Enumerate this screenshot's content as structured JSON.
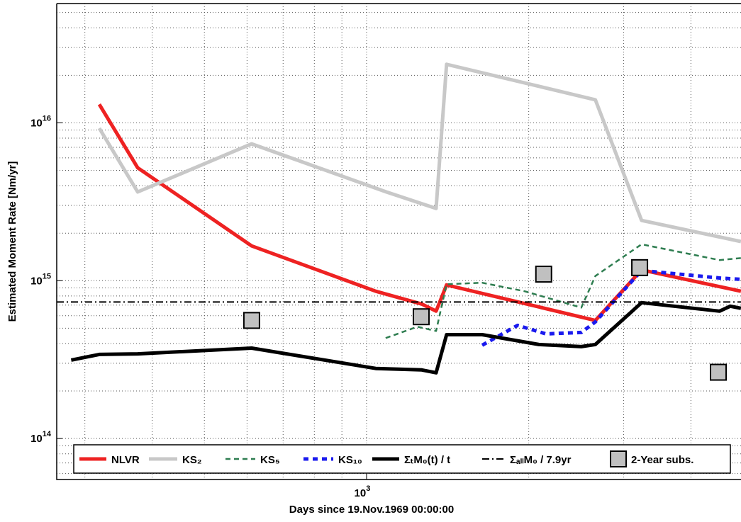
{
  "chart_data": {
    "type": "line",
    "xlabel": "Days since 19.Nov.1969 00:00:00",
    "ylabel": "Estimated Moment Rate [Nm/yr]",
    "xscale": "log",
    "yscale": "log",
    "grid": true,
    "xlim": [
      266,
      4955
    ],
    "ylim": [
      55000000000000.0,
      5.7e+16
    ],
    "xticks": [
      {
        "value": 1000,
        "label": "10",
        "exponent": "3"
      }
    ],
    "yticks": [
      {
        "value": 100000000000000.0,
        "label": "10",
        "exponent": "14"
      },
      {
        "value": 1000000000000000.0,
        "label": "10",
        "exponent": "15"
      },
      {
        "value": 1e+16,
        "label": "10",
        "exponent": "16"
      }
    ],
    "xminor": [
      300,
      400,
      500,
      600,
      700,
      800,
      900,
      2000,
      3000,
      4000
    ],
    "yminor": [
      60000000000000.0,
      70000000000000.0,
      80000000000000.0,
      90000000000000.0,
      200000000000000.0,
      300000000000000.0,
      400000000000000.0,
      500000000000000.0,
      600000000000000.0,
      700000000000000.0,
      800000000000000.0,
      900000000000000.0,
      2000000000000000.0,
      3000000000000000.0,
      4000000000000000.0,
      5000000000000000.0,
      6000000000000000.0,
      7000000000000000.0,
      8000000000000000.0,
      9000000000000000.0,
      2e+16,
      3e+16,
      4e+16,
      5e+16
    ],
    "legend": "bottom",
    "series": [
      {
        "name": "NLVR",
        "color": "#ee2222",
        "style": "solid",
        "width": 5,
        "x": [
          319,
          376,
          612,
          1040,
          1266,
          1346,
          1408,
          2659,
          3240,
          4953
        ],
        "values": [
          1.31e+16,
          5190000000000000.0,
          1660000000000000.0,
          857000000000000.0,
          711000000000000.0,
          641000000000000.0,
          940000000000000.0,
          560000000000000.0,
          1170000000000000.0,
          857000000000000.0
        ]
      },
      {
        "name": "KS₂",
        "color": "#c8c8c8",
        "style": "solid",
        "width": 5,
        "x": [
          319,
          376,
          612,
          1088,
          1346,
          1408,
          2659,
          3240,
          4953
        ],
        "values": [
          9250000000000000.0,
          3650000000000000.0,
          7360000000000000.0,
          3650000000000000.0,
          2870000000000000.0,
          2.35e+16,
          1.4e+16,
          2410000000000000.0,
          1770000000000000.0
        ]
      },
      {
        "name": "KS₅",
        "color": "#2e7d50",
        "style": "dashed",
        "width": 2.5,
        "x": [
          1085,
          1243,
          1346,
          1408,
          1639,
          1965,
          2504,
          2659,
          3240,
          4520,
          4953
        ],
        "values": [
          433000000000000.0,
          511000000000000.0,
          480000000000000.0,
          950000000000000.0,
          970000000000000.0,
          857000000000000.0,
          675000000000000.0,
          1070000000000000.0,
          1700000000000000.0,
          1350000000000000.0,
          1390000000000000.0
        ]
      },
      {
        "name": "KS₁₀",
        "color": "#1a1aee",
        "style": "dotted",
        "width": 5,
        "x": [
          1639,
          1906,
          2153,
          2504,
          2659,
          3240,
          4520,
          4953
        ],
        "values": [
          390000000000000.0,
          521000000000000.0,
          460000000000000.0,
          470000000000000.0,
          548000000000000.0,
          1160000000000000.0,
          1040000000000000.0,
          1020000000000000.0
        ]
      },
      {
        "name": "ΣₜM₀(t) / t",
        "color": "#000000",
        "style": "solid",
        "width": 5,
        "x": [
          283,
          319,
          376,
          612,
          1040,
          1266,
          1346,
          1408,
          1639,
          2088,
          2504,
          2659,
          3240,
          4520,
          4732,
          4953
        ],
        "values": [
          314000000000000.0,
          341000000000000.0,
          344000000000000.0,
          374000000000000.0,
          278000000000000.0,
          272000000000000.0,
          261000000000000.0,
          455000000000000.0,
          455000000000000.0,
          394000000000000.0,
          382000000000000.0,
          394000000000000.0,
          726000000000000.0,
          641000000000000.0,
          689000000000000.0,
          668000000000000.0
        ]
      },
      {
        "name": "ΣₐₗₗM₀ / 7.9yr",
        "color": "#000000",
        "style": "dashdot",
        "width": 2,
        "x": [
          266,
          4955
        ],
        "values": [
          733000000000000.0,
          733000000000000.0
        ]
      },
      {
        "name": "2-Year subs.",
        "color": "#c0c0c0",
        "style": "square",
        "x": [
          612,
          1263,
          2132,
          3213,
          4497
        ],
        "values": [
          560000000000000.0,
          591000000000000.0,
          1100000000000000.0,
          1210000000000000.0,
          263000000000000.0
        ]
      }
    ]
  }
}
